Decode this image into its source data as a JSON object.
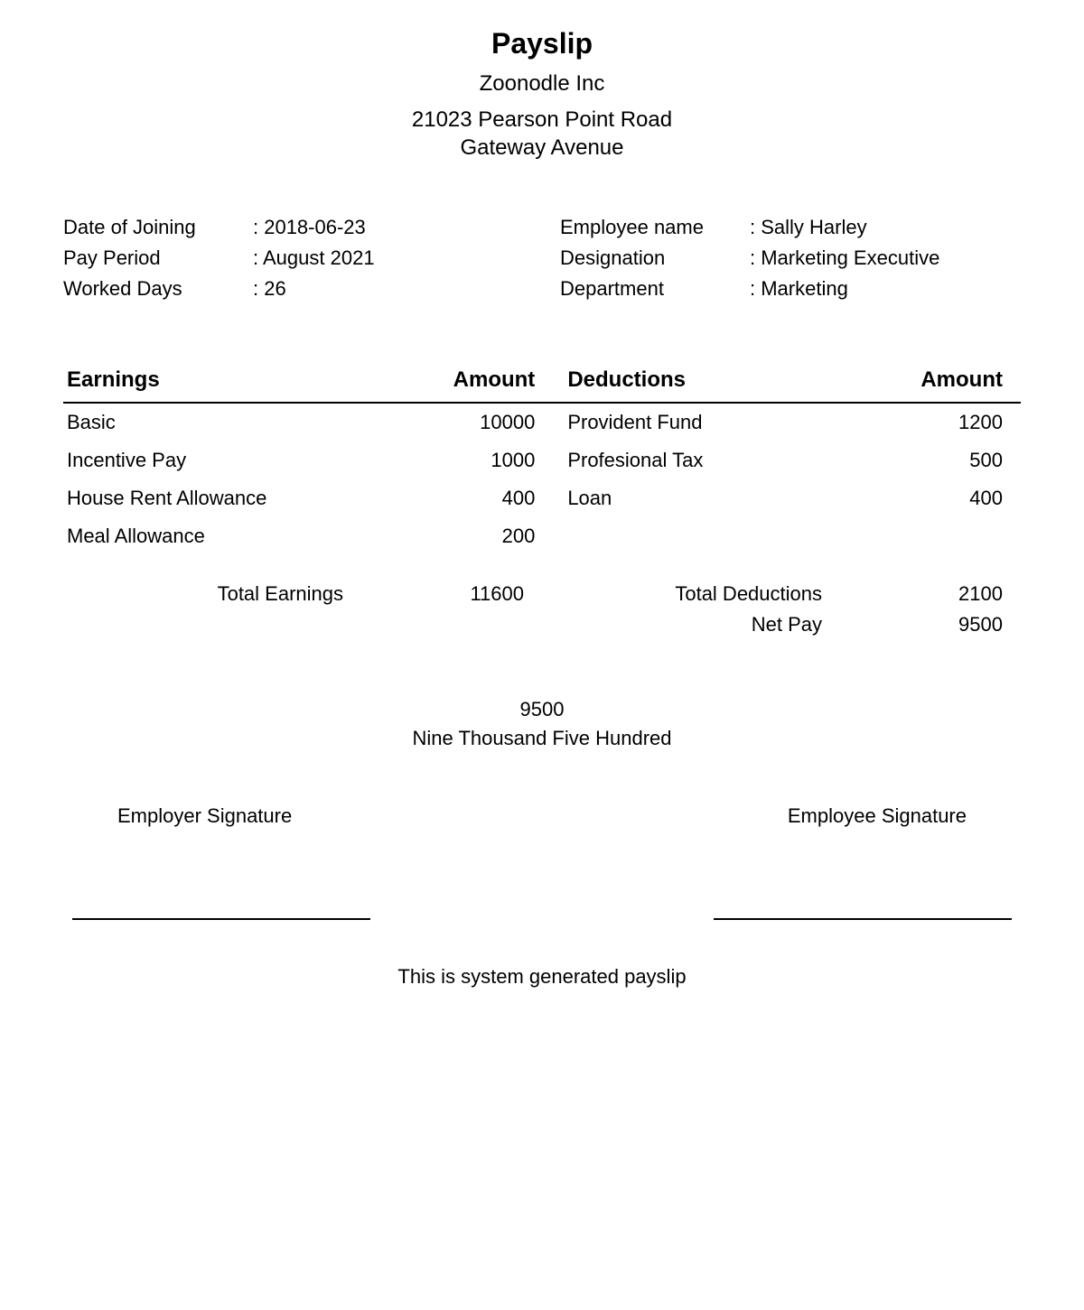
{
  "header": {
    "title": "Payslip",
    "company": "Zoonodle Inc",
    "address_line1": "21023 Pearson Point Road",
    "address_line2": "Gateway Avenue"
  },
  "employee_info": {
    "left": [
      {
        "label": "Date of Joining",
        "value": ": 2018-06-23"
      },
      {
        "label": "Pay Period",
        "value": ": August 2021"
      },
      {
        "label": "Worked Days",
        "value": ": 26"
      }
    ],
    "right": [
      {
        "label": "Employee name",
        "value": ": Sally Harley"
      },
      {
        "label": "Designation",
        "value": ": Marketing Executive"
      },
      {
        "label": "Department",
        "value": ": Marketing"
      }
    ]
  },
  "table_headers": {
    "earnings": "Earnings",
    "earnings_amount": "Amount",
    "deductions": "Deductions",
    "deductions_amount": "Amount"
  },
  "earnings": [
    {
      "label": "Basic",
      "amount": "10000"
    },
    {
      "label": "Incentive Pay",
      "amount": "1000"
    },
    {
      "label": "House Rent Allowance",
      "amount": "400"
    },
    {
      "label": "Meal Allowance",
      "amount": "200"
    }
  ],
  "deductions": [
    {
      "label": "Provident Fund",
      "amount": "1200"
    },
    {
      "label": "Profesional Tax",
      "amount": "500"
    },
    {
      "label": "Loan",
      "amount": "400"
    }
  ],
  "totals": {
    "total_earnings_label": "Total Earnings",
    "total_earnings_value": "11600",
    "total_deductions_label": "Total Deductions",
    "total_deductions_value": "2100",
    "net_pay_label": "Net Pay",
    "net_pay_value": "9500"
  },
  "net_pay_words": {
    "numeric": "9500",
    "words": "Nine Thousand Five Hundred"
  },
  "signatures": {
    "employer": "Employer Signature",
    "employee": "Employee Signature"
  },
  "footer": "This is system generated payslip",
  "styling": {
    "background_color": "#ffffff",
    "text_color": "#000000",
    "border_color": "#000000",
    "font_family": "Arial, Helvetica, sans-serif",
    "title_fontsize": 32,
    "body_fontsize": 22,
    "header_fontsize": 24
  }
}
